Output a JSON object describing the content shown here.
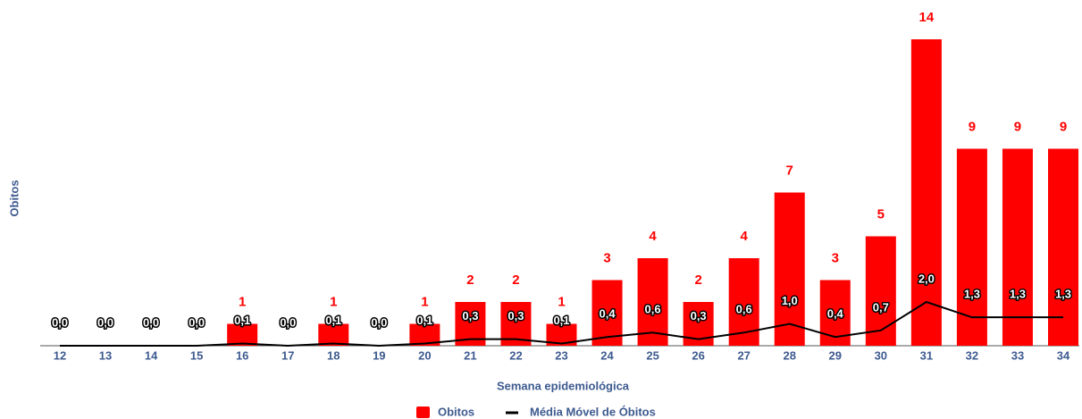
{
  "chart_data": {
    "type": "bar_line",
    "x_label": "Semana epidemiológica",
    "y_label": "Obitos",
    "categories": [
      "12",
      "13",
      "14",
      "15",
      "16",
      "17",
      "18",
      "19",
      "20",
      "21",
      "22",
      "23",
      "24",
      "25",
      "26",
      "27",
      "28",
      "29",
      "30",
      "31",
      "32",
      "33",
      "34"
    ],
    "ylim": [
      0,
      14
    ],
    "series": [
      {
        "name": "Obitos",
        "type": "bar",
        "color": "#ff0000",
        "values": [
          0,
          0,
          0,
          0,
          1,
          0,
          1,
          0,
          1,
          2,
          2,
          1,
          3,
          4,
          2,
          4,
          7,
          3,
          5,
          14,
          9,
          9,
          9
        ]
      },
      {
        "name": "Média Móvel de Óbitos",
        "type": "line",
        "color": "#000000",
        "values": [
          0,
          0,
          0,
          0,
          0.1,
          0,
          0.1,
          0,
          0.1,
          0.3,
          0.3,
          0.1,
          0.4,
          0.6,
          0.3,
          0.6,
          1.0,
          0.4,
          0.7,
          2.0,
          1.3,
          1.3,
          1.3
        ],
        "value_labels": [
          "0,0",
          "0,0",
          "0,0",
          "0,0",
          "0,1",
          "0,0",
          "0,1",
          "0,0",
          "0,1",
          "0,3",
          "0,3",
          "0,1",
          "0,4",
          "0,6",
          "0,3",
          "0,6",
          "1,0",
          "0,4",
          "0,7",
          "2,0",
          "1,3",
          "1,3",
          "1,3"
        ]
      }
    ]
  }
}
